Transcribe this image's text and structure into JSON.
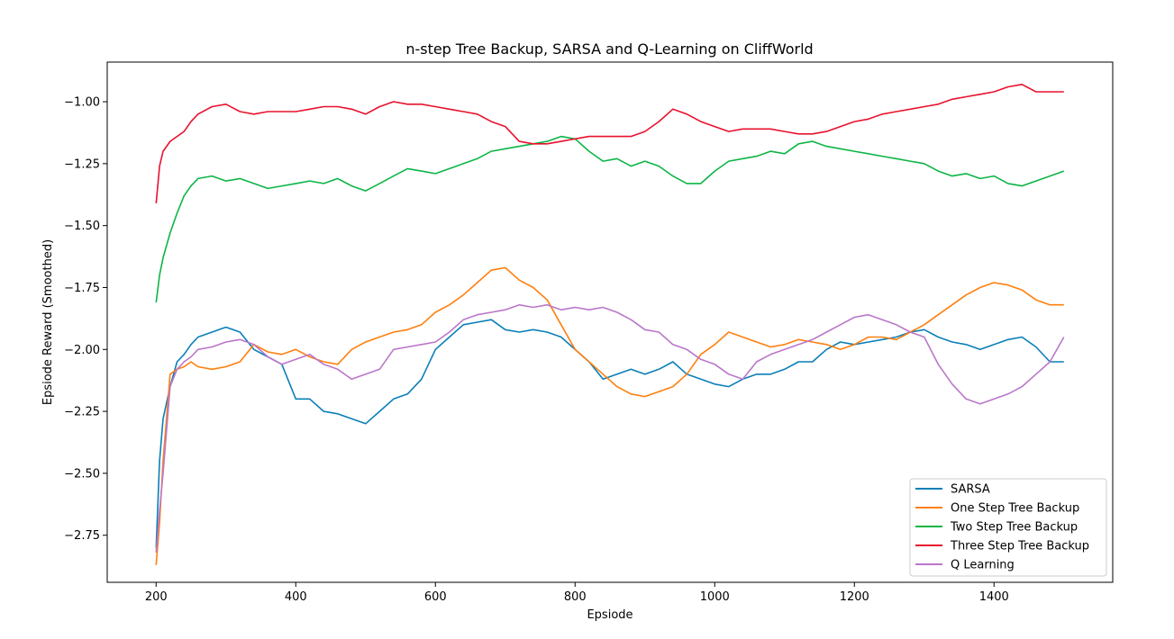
{
  "chart_data": {
    "type": "line",
    "title": "n-step Tree Backup, SARSA and Q-Learning on CliffWorld",
    "xlabel": "Epsiode",
    "ylabel": "Epsiode Reward (Smoothed)",
    "xlim": [
      130,
      1570
    ],
    "ylim": [
      -2.94,
      -0.84
    ],
    "xticks": [
      200,
      400,
      600,
      800,
      1000,
      1200,
      1400
    ],
    "xtick_labels": [
      "200",
      "400",
      "600",
      "800",
      "1000",
      "1200",
      "1400"
    ],
    "yticks": [
      -2.75,
      -2.5,
      -2.25,
      -2.0,
      -1.75,
      -1.5,
      -1.25,
      -1.0
    ],
    "ytick_labels": [
      "−2.75",
      "−2.50",
      "−2.25",
      "−2.00",
      "−1.75",
      "−1.50",
      "−1.25",
      "−1.00"
    ],
    "grid": false,
    "legend_position": "lower right",
    "x": [
      200,
      205,
      210,
      220,
      230,
      240,
      250,
      260,
      280,
      300,
      320,
      340,
      360,
      380,
      400,
      420,
      440,
      460,
      480,
      500,
      520,
      540,
      560,
      580,
      600,
      620,
      640,
      660,
      680,
      700,
      720,
      740,
      760,
      780,
      800,
      820,
      840,
      860,
      880,
      900,
      920,
      940,
      960,
      980,
      1000,
      1020,
      1040,
      1060,
      1080,
      1100,
      1120,
      1140,
      1160,
      1180,
      1200,
      1220,
      1240,
      1260,
      1280,
      1300,
      1320,
      1340,
      1360,
      1380,
      1400,
      1420,
      1440,
      1460,
      1480,
      1500
    ],
    "series": [
      {
        "name": "SARSA",
        "color": "#0a7fb8",
        "values": [
          -2.8,
          -2.45,
          -2.28,
          -2.15,
          -2.05,
          -2.02,
          -1.98,
          -1.95,
          -1.93,
          -1.91,
          -1.93,
          -2.0,
          -2.03,
          -2.06,
          -2.2,
          -2.2,
          -2.25,
          -2.26,
          -2.28,
          -2.3,
          -2.25,
          -2.2,
          -2.18,
          -2.12,
          -2.0,
          -1.95,
          -1.9,
          -1.89,
          -1.88,
          -1.92,
          -1.93,
          -1.92,
          -1.93,
          -1.95,
          -2.0,
          -2.05,
          -2.12,
          -2.1,
          -2.08,
          -2.1,
          -2.08,
          -2.05,
          -2.1,
          -2.12,
          -2.14,
          -2.15,
          -2.12,
          -2.1,
          -2.1,
          -2.08,
          -2.05,
          -2.05,
          -2.0,
          -1.97,
          -1.98,
          -1.97,
          -1.96,
          -1.95,
          -1.93,
          -1.92,
          -1.95,
          -1.97,
          -1.98,
          -2.0,
          -1.98,
          -1.96,
          -1.95,
          -1.99,
          -2.05,
          -2.05
        ]
      },
      {
        "name": "One Step Tree Backup",
        "color": "#ff7f0e",
        "values": [
          -2.87,
          -2.7,
          -2.45,
          -2.1,
          -2.08,
          -2.07,
          -2.05,
          -2.07,
          -2.08,
          -2.07,
          -2.05,
          -1.98,
          -2.01,
          -2.02,
          -2.0,
          -2.03,
          -2.05,
          -2.06,
          -2.0,
          -1.97,
          -1.95,
          -1.93,
          -1.92,
          -1.9,
          -1.85,
          -1.82,
          -1.78,
          -1.73,
          -1.68,
          -1.67,
          -1.72,
          -1.75,
          -1.8,
          -1.9,
          -2.0,
          -2.05,
          -2.1,
          -2.15,
          -2.18,
          -2.19,
          -2.17,
          -2.15,
          -2.1,
          -2.02,
          -1.98,
          -1.93,
          -1.95,
          -1.97,
          -1.99,
          -1.98,
          -1.96,
          -1.97,
          -1.98,
          -2.0,
          -1.98,
          -1.95,
          -1.95,
          -1.96,
          -1.93,
          -1.9,
          -1.86,
          -1.82,
          -1.78,
          -1.75,
          -1.73,
          -1.74,
          -1.76,
          -1.8,
          -1.82,
          -1.82
        ]
      },
      {
        "name": "Two Step Tree Backup",
        "color": "#0db546",
        "values": [
          -1.81,
          -1.7,
          -1.63,
          -1.53,
          -1.45,
          -1.38,
          -1.34,
          -1.31,
          -1.3,
          -1.32,
          -1.31,
          -1.33,
          -1.35,
          -1.34,
          -1.33,
          -1.32,
          -1.33,
          -1.31,
          -1.34,
          -1.36,
          -1.33,
          -1.3,
          -1.27,
          -1.28,
          -1.29,
          -1.27,
          -1.25,
          -1.23,
          -1.2,
          -1.19,
          -1.18,
          -1.17,
          -1.16,
          -1.14,
          -1.15,
          -1.2,
          -1.24,
          -1.23,
          -1.26,
          -1.24,
          -1.26,
          -1.3,
          -1.33,
          -1.33,
          -1.28,
          -1.24,
          -1.23,
          -1.22,
          -1.2,
          -1.21,
          -1.17,
          -1.16,
          -1.18,
          -1.19,
          -1.2,
          -1.21,
          -1.22,
          -1.23,
          -1.24,
          -1.25,
          -1.28,
          -1.3,
          -1.29,
          -1.31,
          -1.3,
          -1.33,
          -1.34,
          -1.32,
          -1.3,
          -1.28
        ]
      },
      {
        "name": "Three Step Tree Backup",
        "color": "#e8112d",
        "values": [
          -1.41,
          -1.26,
          -1.2,
          -1.16,
          -1.14,
          -1.12,
          -1.08,
          -1.05,
          -1.02,
          -1.01,
          -1.04,
          -1.05,
          -1.04,
          -1.04,
          -1.04,
          -1.03,
          -1.02,
          -1.02,
          -1.03,
          -1.05,
          -1.02,
          -1.0,
          -1.01,
          -1.01,
          -1.02,
          -1.03,
          -1.04,
          -1.05,
          -1.08,
          -1.1,
          -1.16,
          -1.17,
          -1.17,
          -1.16,
          -1.15,
          -1.14,
          -1.14,
          -1.14,
          -1.14,
          -1.12,
          -1.08,
          -1.03,
          -1.05,
          -1.08,
          -1.1,
          -1.12,
          -1.11,
          -1.11,
          -1.11,
          -1.12,
          -1.13,
          -1.13,
          -1.12,
          -1.1,
          -1.08,
          -1.07,
          -1.05,
          -1.04,
          -1.03,
          -1.02,
          -1.01,
          -0.99,
          -0.98,
          -0.97,
          -0.96,
          -0.94,
          -0.93,
          -0.96,
          -0.96,
          -0.96
        ]
      },
      {
        "name": "Q Learning",
        "color": "#ba77c9",
        "values": [
          -2.82,
          -2.65,
          -2.5,
          -2.15,
          -2.08,
          -2.05,
          -2.03,
          -2.0,
          -1.99,
          -1.97,
          -1.96,
          -1.98,
          -2.03,
          -2.06,
          -2.04,
          -2.02,
          -2.06,
          -2.08,
          -2.12,
          -2.1,
          -2.08,
          -2.0,
          -1.99,
          -1.98,
          -1.97,
          -1.93,
          -1.88,
          -1.86,
          -1.85,
          -1.84,
          -1.82,
          -1.83,
          -1.82,
          -1.84,
          -1.83,
          -1.84,
          -1.83,
          -1.85,
          -1.88,
          -1.92,
          -1.93,
          -1.98,
          -2.0,
          -2.04,
          -2.06,
          -2.1,
          -2.12,
          -2.05,
          -2.02,
          -2.0,
          -1.98,
          -1.96,
          -1.93,
          -1.9,
          -1.87,
          -1.86,
          -1.88,
          -1.9,
          -1.93,
          -1.95,
          -2.06,
          -2.14,
          -2.2,
          -2.22,
          -2.2,
          -2.18,
          -2.15,
          -2.1,
          -2.05,
          -1.95
        ]
      }
    ]
  }
}
